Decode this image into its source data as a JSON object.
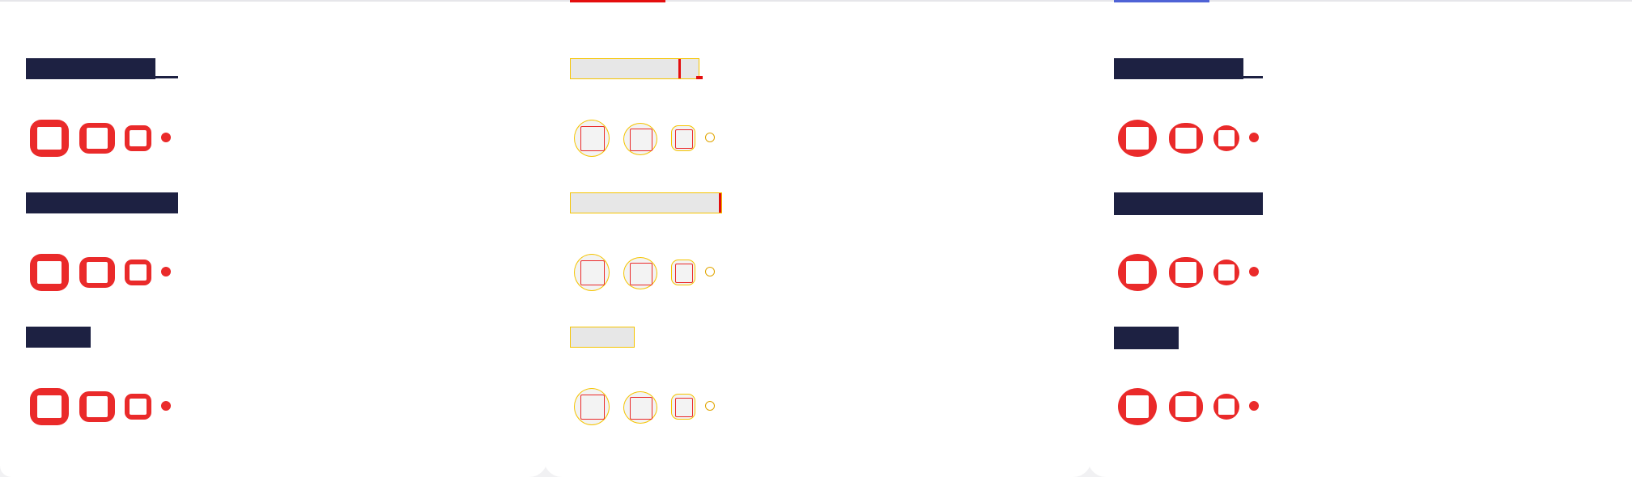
{
  "colors": {
    "panel_background": "#ffffff",
    "page_background": "#f1f1f3",
    "swatch_red": "#ea2a2a",
    "title_navy": "#1d2142",
    "outline_yellow": "#f5c400",
    "accent_red": "#e40e0e",
    "accent_blue": "#4f63d6"
  },
  "panels": [
    {
      "variant": "solid",
      "accent": null,
      "rows": [
        {
          "title_icon": "title-bar-with-underscore",
          "swatches": [
            "square-frame-large",
            "square-frame-medium",
            "square-frame-small",
            "dot"
          ]
        },
        {
          "title_icon": "title-bar-full",
          "swatches": [
            "square-frame-large",
            "square-frame-medium",
            "square-frame-small",
            "dot"
          ]
        },
        {
          "title_icon": "title-bar-short",
          "swatches": [
            "square-frame-large",
            "square-frame-medium",
            "square-frame-small",
            "dot"
          ]
        }
      ]
    },
    {
      "variant": "outline",
      "accent": "#e40e0e",
      "rows": [
        {
          "title_icon": "title-bar-with-cursor",
          "swatches": [
            "circle-frame-large",
            "circle-frame-medium",
            "square-frame-small",
            "dot"
          ]
        },
        {
          "title_icon": "title-bar-full-with-cursor",
          "swatches": [
            "circle-frame-large",
            "circle-frame-medium",
            "square-frame-small",
            "dot"
          ]
        },
        {
          "title_icon": "title-bar-short",
          "swatches": [
            "circle-frame-large",
            "circle-frame-medium",
            "square-frame-small",
            "dot"
          ]
        }
      ]
    },
    {
      "variant": "solid",
      "accent": "#4f63d6",
      "rows": [
        {
          "title_icon": "title-bar-with-underscore",
          "swatches": [
            "circle-frame-large",
            "circle-frame-medium",
            "circle-frame-small",
            "dot"
          ]
        },
        {
          "title_icon": "title-bar-full",
          "swatches": [
            "circle-frame-large",
            "circle-frame-medium",
            "circle-frame-small",
            "dot"
          ]
        },
        {
          "title_icon": "title-bar-short",
          "swatches": [
            "circle-frame-large",
            "circle-frame-medium",
            "circle-frame-small",
            "dot"
          ]
        }
      ]
    }
  ]
}
